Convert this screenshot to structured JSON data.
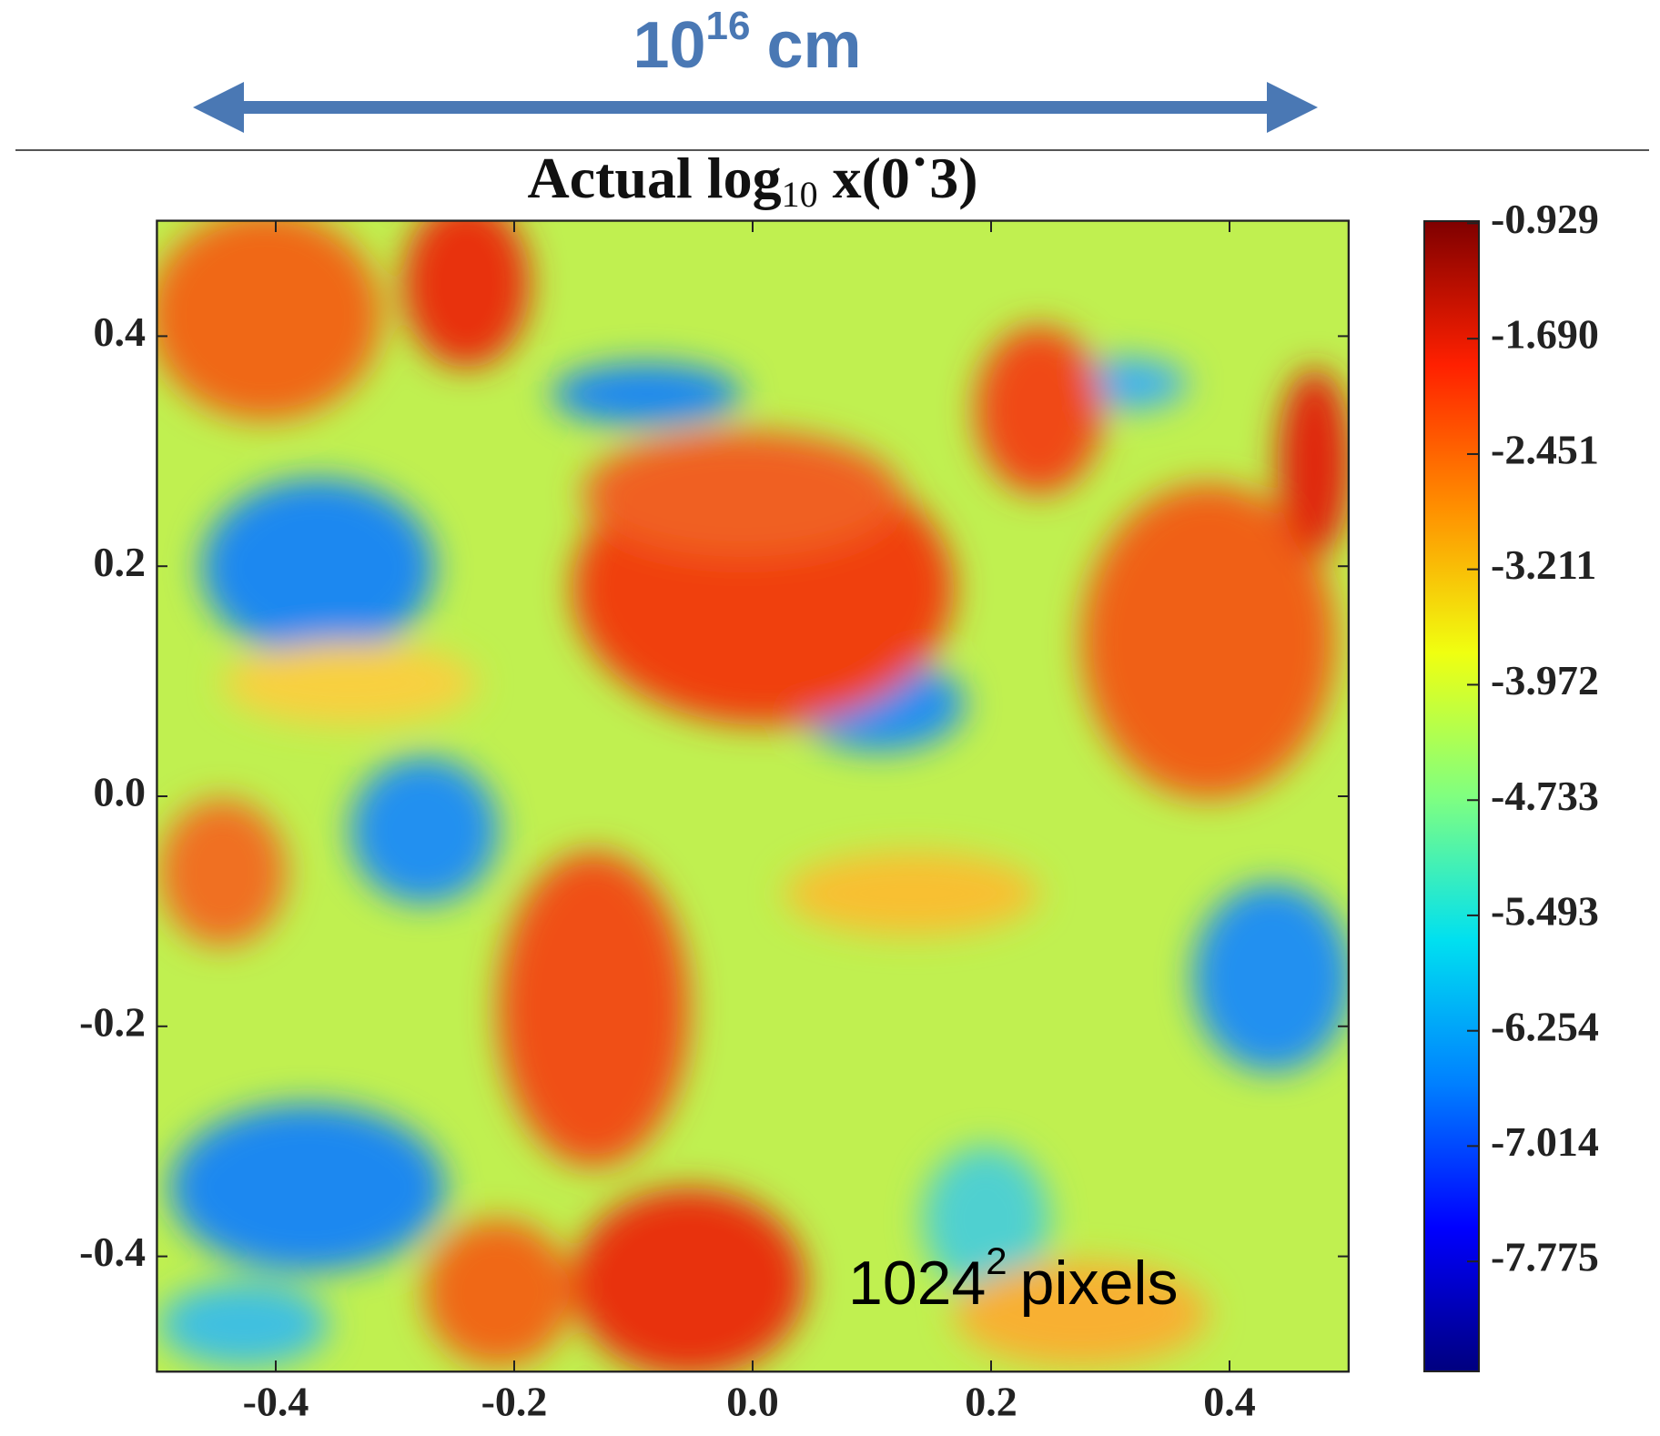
{
  "chart_data": {
    "type": "heatmap",
    "scale_label": {
      "base": "10",
      "exp": "16",
      "unit": "cm"
    },
    "title": {
      "text": "Actual log",
      "sub": "10",
      "rest": "x(0˙3)"
    },
    "annotation": {
      "base": "1024",
      "exp": "2",
      "unit": "pixels"
    },
    "xlim": [
      -0.5,
      0.5
    ],
    "xticks": [
      -0.4,
      -0.2,
      {
        "value": 0,
        "label": "0.0"
      },
      0.2,
      0.4
    ],
    "ylim": [
      -0.5,
      0.5
    ],
    "yticks": [
      -0.4,
      -0.2,
      {
        "value": 0,
        "label": "0.0"
      },
      0.2,
      0.4
    ],
    "colorbar": {
      "lim": [
        -8.5,
        -0.915
      ],
      "ticks": [
        -0.929,
        {
          "value": -1.69,
          "label": "-1.690"
        },
        -2.451,
        -3.211,
        -3.972,
        -4.733,
        -5.493,
        -6.254,
        -7.014,
        -7.775
      ],
      "colors": [
        "#00007f",
        "#0000ff",
        "#0080ff",
        "#00e0f0",
        "#80ff80",
        "#f0ff10",
        "#ff9000",
        "#ff2000",
        "#7f0000"
      ]
    },
    "arrow_color": "#4a78b4"
  }
}
